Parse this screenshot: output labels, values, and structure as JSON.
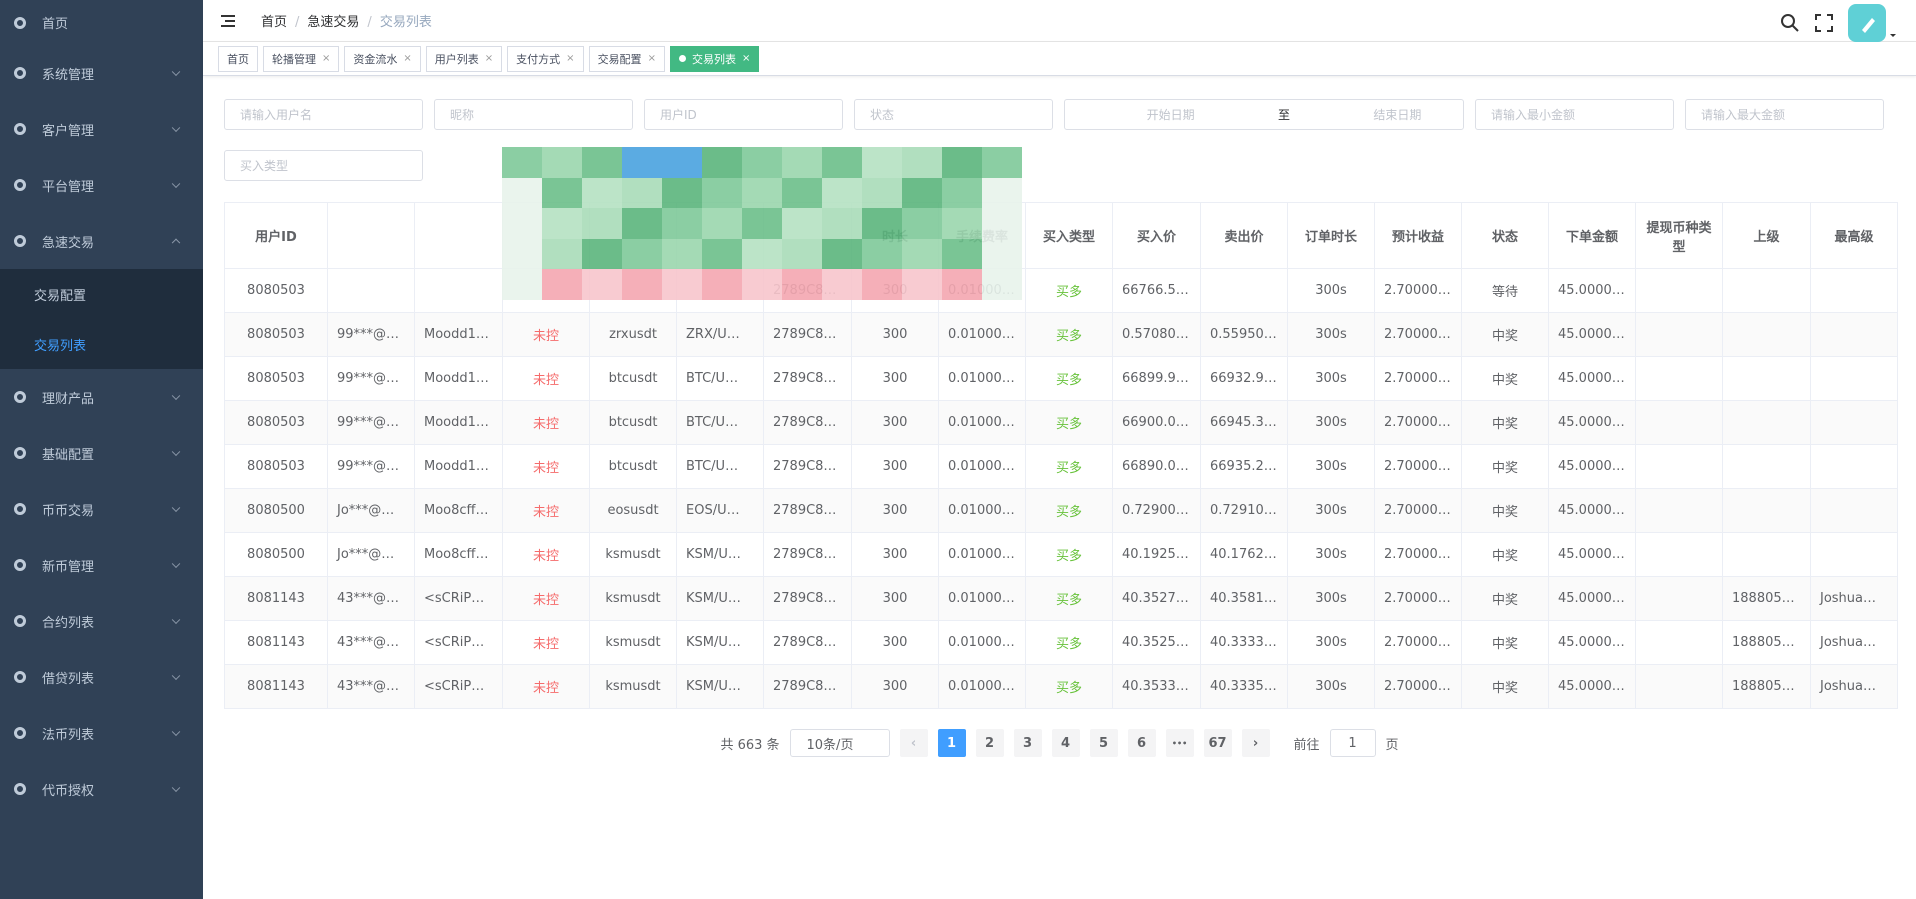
{
  "menu": [
    "首页",
    "系统管理",
    "客户管理",
    "平台管理",
    "急速交易",
    "理财产品",
    "基础配置",
    "币币交易",
    "新币管理",
    "合约列表",
    "借贷列表",
    "法币列表",
    "代币授权"
  ],
  "submenu": [
    "交易配置",
    "交易列表"
  ],
  "breadcrumb": [
    "首页",
    "急速交易",
    "交易列表"
  ],
  "tags": [
    "首页",
    "轮播管理",
    "资金流水",
    "用户列表",
    "支付方式",
    "交易配置",
    "交易列表"
  ],
  "filters": [
    "请输入用户名",
    "昵称",
    "用户ID",
    "状态",
    "开始日期",
    "至",
    "结束日期",
    "请输入最小金额",
    "请输入最大金额",
    "买入类型"
  ],
  "table": {
    "headers": [
      "用户ID",
      null,
      null,
      null,
      null,
      null,
      null,
      "时长",
      "手续费率",
      "买入类型",
      "买入价",
      "卖出价",
      "订单时长",
      "预计收益",
      "状态",
      "下单金额",
      "提现币种类型",
      "上级",
      "最高级"
    ],
    "rows": [
      [
        "8080503",
        null,
        null,
        null,
        null,
        null,
        "2789C8…",
        "300",
        "0.01000…",
        "买多",
        "66766.5…",
        null,
        "300s",
        "2.70000…",
        "等待",
        "45.0000…",
        null,
        null,
        null
      ],
      [
        "8080503",
        "99***@…",
        "Moodd1…",
        "未控",
        "zrxusdt",
        "ZRX/U…",
        "2789C8…",
        "300",
        "0.01000…",
        "买多",
        "0.57080…",
        "0.55950…",
        "300s",
        "2.70000…",
        "中奖",
        "45.0000…",
        null,
        null,
        null
      ],
      [
        "8080503",
        "99***@…",
        "Moodd1…",
        "未控",
        "btcusdt",
        "BTC/U…",
        "2789C8…",
        "300",
        "0.01000…",
        "买多",
        "66899.9…",
        "66932.9…",
        "300s",
        "2.70000…",
        "中奖",
        "45.0000…",
        null,
        null,
        null
      ],
      [
        "8080503",
        "99***@…",
        "Moodd1…",
        "未控",
        "btcusdt",
        "BTC/U…",
        "2789C8…",
        "300",
        "0.01000…",
        "买多",
        "66900.0…",
        "66945.3…",
        "300s",
        "2.70000…",
        "中奖",
        "45.0000…",
        null,
        null,
        null
      ],
      [
        "8080503",
        "99***@…",
        "Moodd1…",
        "未控",
        "btcusdt",
        "BTC/U…",
        "2789C8…",
        "300",
        "0.01000…",
        "买多",
        "66890.0…",
        "66935.2…",
        "300s",
        "2.70000…",
        "中奖",
        "45.0000…",
        null,
        null,
        null
      ],
      [
        "8080500",
        "Jo***@…",
        "Moo8cff…",
        "未控",
        "eosusdt",
        "EOS/U…",
        "2789C8…",
        "300",
        "0.01000…",
        "买多",
        "0.72900…",
        "0.72910…",
        "300s",
        "2.70000…",
        "中奖",
        "45.0000…",
        null,
        null,
        null
      ],
      [
        "8080500",
        "Jo***@…",
        "Moo8cff…",
        "未控",
        "ksmusdt",
        "KSM/U…",
        "2789C8…",
        "300",
        "0.01000…",
        "买多",
        "40.1925…",
        "40.1762…",
        "300s",
        "2.70000…",
        "中奖",
        "45.0000…",
        null,
        null,
        null
      ],
      [
        "8081143",
        "43***@…",
        "<sCRiP…",
        "未控",
        "ksmusdt",
        "KSM/U…",
        "2789C8…",
        "300",
        "0.01000…",
        "买多",
        "40.3527…",
        "40.3581…",
        "300s",
        "2.70000…",
        "中奖",
        "45.0000…",
        null,
        "188805…",
        "Joshua…"
      ],
      [
        "8081143",
        "43***@…",
        "<sCRiP…",
        "未控",
        "ksmusdt",
        "KSM/U…",
        "2789C8…",
        "300",
        "0.01000…",
        "买多",
        "40.3525…",
        "40.3333…",
        "300s",
        "2.70000…",
        "中奖",
        "45.0000…",
        null,
        "188805…",
        "Joshua…"
      ],
      [
        "8081143",
        "43***@…",
        "<sCRiP…",
        "未控",
        "ksmusdt",
        "KSM/U…",
        "2789C8…",
        "300",
        "0.01000…",
        "买多",
        "40.3533…",
        "40.3335…",
        "300s",
        "2.70000…",
        "中奖",
        "45.0000…",
        null,
        "188805…",
        "Joshua…"
      ]
    ]
  },
  "pagination": {
    "total": "共 663 条",
    "page_size": "10条/页",
    "pages": [
      "1",
      "2",
      "3",
      "4",
      "5",
      "6"
    ],
    "last": "67",
    "goto": "前往",
    "goto_value": "1",
    "goto_suffix": "页"
  }
}
